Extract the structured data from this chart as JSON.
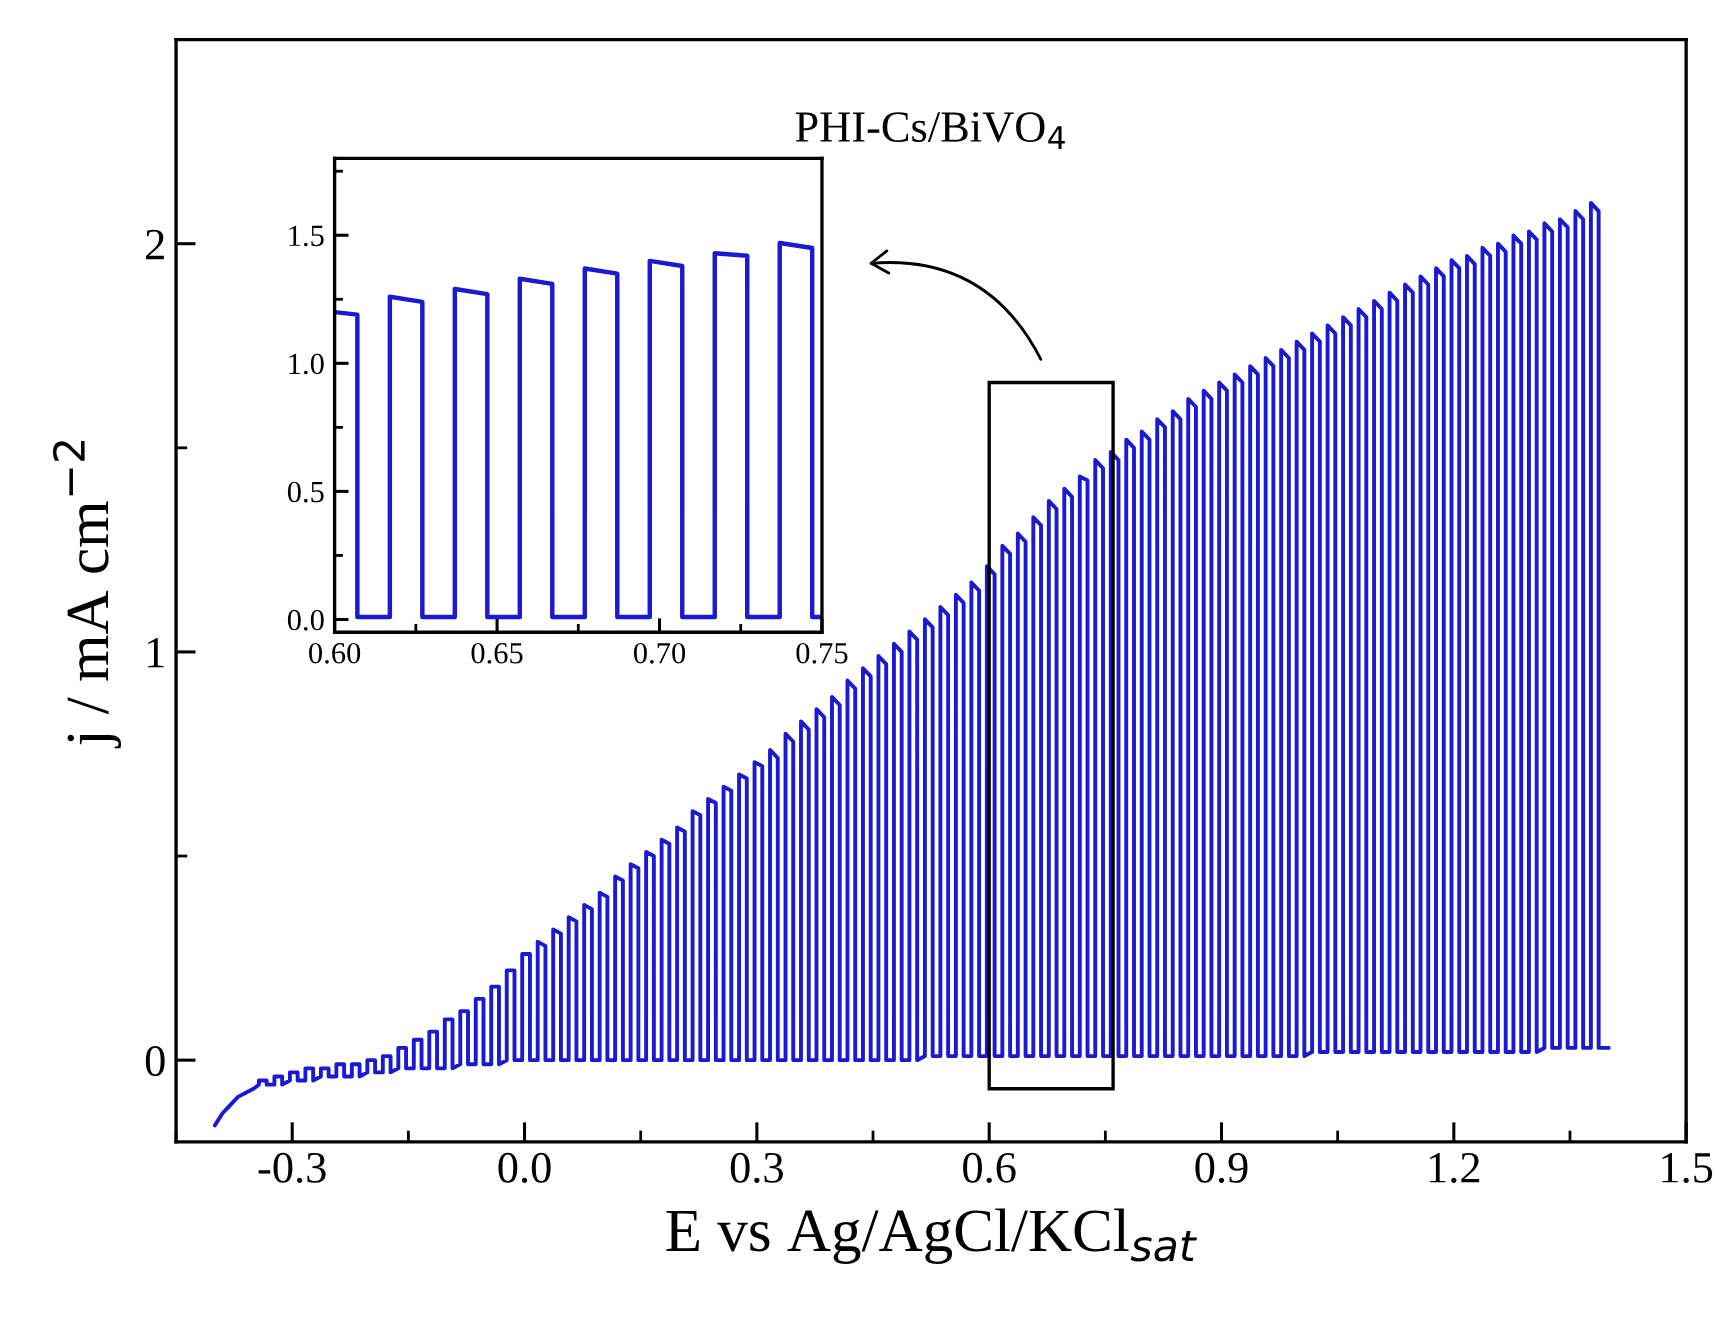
{
  "chart_data": [
    {
      "type": "line",
      "title": "PHI-Cs/BiVO$_{4}$",
      "xlabel": "E vs Ag/AgCl/KCl$_{sat}$",
      "ylabel": "j / mA cm$^{−2}$",
      "xlim": [
        -0.45,
        1.5
      ],
      "ylim": [
        -0.2,
        2.5
      ],
      "xticks": [
        -0.3,
        {
          "value": 0.0,
          "label": "0.0"
        },
        0.3,
        0.6,
        0.9,
        1.2,
        1.5
      ],
      "yticks": [
        0,
        1,
        2
      ],
      "series": [
        {
          "color": "#1a1ad2",
          "x": [
            -0.4,
            -0.39,
            -0.38,
            -0.37,
            -0.36,
            -0.35,
            -0.343,
            -0.343,
            -0.333,
            -0.333,
            -0.323,
            -0.323,
            -0.313,
            -0.313,
            -0.303,
            -0.303,
            -0.293,
            -0.293,
            -0.283,
            -0.283,
            -0.273,
            -0.273,
            -0.263,
            -0.263,
            -0.253,
            -0.253,
            -0.243,
            -0.243,
            -0.233,
            -0.233,
            -0.223,
            -0.223,
            -0.213,
            -0.213,
            -0.203,
            -0.203,
            -0.193,
            -0.193,
            -0.183,
            -0.183,
            -0.173,
            -0.173,
            -0.163,
            -0.163,
            -0.153,
            -0.153,
            -0.143,
            -0.143,
            -0.133,
            -0.133,
            -0.123,
            -0.123,
            -0.113,
            -0.113,
            -0.103,
            -0.103,
            -0.093,
            -0.093,
            -0.083,
            -0.083,
            -0.073,
            -0.073,
            -0.063,
            -0.063,
            -0.053,
            -0.053,
            -0.043,
            -0.043,
            -0.033,
            -0.033,
            -0.023,
            -0.023,
            -0.013,
            -0.013,
            -0.003,
            -0.003,
            0.007,
            0.007,
            0.017,
            0.017,
            0.027,
            0.027,
            0.037,
            0.037,
            0.047,
            0.047,
            0.057,
            0.057,
            0.067,
            0.067,
            0.077,
            0.077,
            0.087,
            0.087,
            0.097,
            0.097,
            0.107,
            0.107,
            0.117,
            0.117,
            0.127,
            0.127,
            0.137,
            0.137,
            0.147,
            0.147,
            0.157,
            0.157,
            0.167,
            0.167,
            0.177,
            0.177,
            0.187,
            0.187,
            0.197,
            0.197,
            0.207,
            0.207,
            0.217,
            0.217,
            0.227,
            0.227,
            0.237,
            0.237,
            0.247,
            0.247,
            0.257,
            0.257,
            0.267,
            0.267,
            0.277,
            0.277,
            0.287,
            0.287,
            0.297,
            0.297,
            0.307,
            0.307,
            0.317,
            0.317,
            0.327,
            0.327,
            0.337,
            0.337,
            0.347,
            0.347,
            0.357,
            0.357,
            0.367,
            0.367,
            0.377,
            0.377,
            0.387,
            0.387,
            0.397,
            0.397,
            0.407,
            0.407,
            0.417,
            0.417,
            0.427,
            0.427,
            0.437,
            0.437,
            0.447,
            0.447,
            0.457,
            0.457,
            0.467,
            0.467,
            0.477,
            0.477,
            0.487,
            0.487,
            0.497,
            0.497,
            0.507,
            0.507,
            0.517,
            0.517,
            0.527,
            0.527,
            0.537,
            0.537,
            0.547,
            0.547,
            0.557,
            0.557,
            0.567,
            0.567,
            0.577,
            0.577,
            0.587,
            0.587,
            0.597,
            0.597,
            0.607,
            0.607,
            0.617,
            0.617,
            0.627,
            0.627,
            0.637,
            0.637,
            0.647,
            0.647,
            0.657,
            0.657,
            0.667,
            0.667,
            0.677,
            0.677,
            0.687,
            0.687,
            0.697,
            0.697,
            0.707,
            0.707,
            0.717,
            0.717,
            0.727,
            0.727,
            0.737,
            0.737,
            0.747,
            0.747,
            0.757,
            0.757,
            0.767,
            0.767,
            0.777,
            0.777,
            0.787,
            0.787,
            0.797,
            0.797,
            0.807,
            0.807,
            0.817,
            0.817,
            0.827,
            0.827,
            0.837,
            0.837,
            0.847,
            0.847,
            0.857,
            0.857,
            0.867,
            0.867,
            0.877,
            0.877,
            0.887,
            0.887,
            0.897,
            0.897,
            0.907,
            0.907,
            0.917,
            0.917,
            0.927,
            0.927,
            0.937,
            0.937,
            0.947,
            0.947,
            0.957,
            0.957,
            0.967,
            0.967,
            0.977,
            0.977,
            0.987,
            0.987,
            0.997,
            0.997,
            1.007,
            1.007,
            1.017,
            1.017,
            1.027,
            1.027,
            1.037,
            1.037,
            1.047,
            1.047,
            1.057,
            1.057,
            1.067,
            1.067,
            1.077,
            1.077,
            1.087,
            1.087,
            1.097,
            1.097,
            1.107,
            1.107,
            1.117,
            1.117,
            1.127,
            1.127,
            1.137,
            1.137,
            1.147,
            1.147,
            1.157,
            1.157,
            1.167,
            1.167,
            1.177,
            1.177,
            1.187,
            1.187,
            1.197,
            1.197,
            1.207,
            1.207,
            1.217,
            1.217,
            1.227,
            1.227,
            1.237,
            1.237,
            1.247,
            1.247,
            1.257,
            1.257,
            1.267,
            1.267,
            1.277,
            1.277,
            1.287,
            1.287,
            1.297,
            1.297,
            1.307,
            1.307,
            1.317,
            1.317,
            1.327,
            1.327,
            1.337,
            1.337,
            1.347,
            1.347,
            1.357,
            1.357,
            1.367,
            1.367,
            1.377,
            1.377,
            1.387,
            1.387,
            1.4
          ],
          "values": [
            -0.16,
            -0.13,
            -0.11,
            -0.09,
            -0.08,
            -0.07,
            -0.06,
            -0.05,
            -0.05,
            -0.06,
            -0.06,
            -0.04,
            -0.04,
            -0.06,
            -0.05,
            -0.03,
            -0.03,
            -0.05,
            -0.05,
            -0.02,
            -0.02,
            -0.05,
            -0.04,
            -0.02,
            -0.02,
            -0.04,
            -0.04,
            -0.01,
            -0.01,
            -0.04,
            -0.04,
            -0.01,
            -0.01,
            -0.04,
            -0.03,
            0,
            0,
            -0.03,
            -0.03,
            0.01,
            0.01,
            -0.03,
            -0.02,
            0.03,
            0.03,
            -0.02,
            -0.02,
            0.05,
            0.05,
            -0.02,
            -0.02,
            0.07,
            0.07,
            -0.02,
            -0.02,
            0.1,
            0.1,
            -0.02,
            -0.01,
            0.12,
            0.12,
            -0.01,
            -0.01,
            0.15,
            0.15,
            -0.01,
            -0.01,
            0.18,
            0.18,
            -0.01,
            0,
            0.22,
            0.22,
            0,
            0,
            0.26,
            0.26,
            0,
            0,
            0.29,
            0.28,
            0,
            0,
            0.32,
            0.31,
            0,
            0,
            0.35,
            0.34,
            0,
            0,
            0.38,
            0.37,
            0,
            0,
            0.41,
            0.4,
            0,
            0,
            0.45,
            0.44,
            0,
            0,
            0.48,
            0.47,
            0,
            0,
            0.51,
            0.5,
            0,
            0,
            0.54,
            0.53,
            0,
            0,
            0.57,
            0.56,
            0,
            0,
            0.61,
            0.6,
            0,
            0,
            0.64,
            0.63,
            0,
            0,
            0.67,
            0.66,
            0,
            0,
            0.7,
            0.69,
            0,
            0,
            0.73,
            0.72,
            0,
            0,
            0.76,
            0.74,
            0,
            0,
            0.8,
            0.78,
            0,
            0,
            0.83,
            0.81,
            0,
            0,
            0.86,
            0.84,
            0,
            0,
            0.89,
            0.87,
            0,
            0,
            0.93,
            0.91,
            0,
            0,
            0.96,
            0.94,
            0,
            0,
            0.99,
            0.97,
            0,
            0,
            1.02,
            1.0,
            0,
            0,
            1.05,
            1.03,
            0,
            0.01,
            1.08,
            1.06,
            0.01,
            0.01,
            1.11,
            1.09,
            0.01,
            0.01,
            1.14,
            1.12,
            0.01,
            0.01,
            1.17,
            1.15,
            0.01,
            0.01,
            1.21,
            1.19,
            0.01,
            0.01,
            1.26,
            1.24,
            0.01,
            0.01,
            1.29,
            1.27,
            0.01,
            0.01,
            1.33,
            1.31,
            0.01,
            0.01,
            1.37,
            1.35,
            0.01,
            0.01,
            1.4,
            1.38,
            0.01,
            0.01,
            1.43,
            1.42,
            0.01,
            0.01,
            1.47,
            1.45,
            0.01,
            0.01,
            1.49,
            1.47,
            0.01,
            0.01,
            1.52,
            1.5,
            0.01,
            0.01,
            1.54,
            1.52,
            0.01,
            0.01,
            1.57,
            1.55,
            0.01,
            0.01,
            1.59,
            1.57,
            0.01,
            0.01,
            1.62,
            1.6,
            0.01,
            0.01,
            1.64,
            1.62,
            0.01,
            0.01,
            1.66,
            1.64,
            0.01,
            0.01,
            1.68,
            1.66,
            0.01,
            0.01,
            1.7,
            1.68,
            0.01,
            0.01,
            1.72,
            1.7,
            0.01,
            0.01,
            1.74,
            1.72,
            0.01,
            0.01,
            1.76,
            1.74,
            0.01,
            0.02,
            1.78,
            1.76,
            0.02,
            0.02,
            1.8,
            1.78,
            0.02,
            0.02,
            1.82,
            1.8,
            0.02,
            0.02,
            1.84,
            1.82,
            0.02,
            0.02,
            1.86,
            1.84,
            0.02,
            0.02,
            1.88,
            1.86,
            0.02,
            0.02,
            1.9,
            1.88,
            0.02,
            0.02,
            1.92,
            1.9,
            0.02,
            0.02,
            1.94,
            1.92,
            0.02,
            0.02,
            1.96,
            1.94,
            0.02,
            0.02,
            1.97,
            1.95,
            0.02,
            0.02,
            1.99,
            1.97,
            0.02,
            0.02,
            2.0,
            1.98,
            0.02,
            0.02,
            2.02,
            2.0,
            0.02,
            0.02,
            2.03,
            2.01,
            0.02,
            0.03,
            2.05,
            2.03,
            0.03,
            0.03,
            2.06,
            2.04,
            0.03,
            0.03,
            2.08,
            2.06,
            0.03,
            0.03,
            2.1,
            2.08,
            0.03,
            0.03
          ]
        }
      ]
    },
    {
      "type": "line",
      "xlim": [
        0.6,
        0.75
      ],
      "ylim": [
        -0.05,
        1.8
      ],
      "xticks": [
        {
          "value": 0.6,
          "label": "0.60"
        },
        0.65,
        {
          "value": 0.7,
          "label": "0.70"
        },
        0.75
      ],
      "yticks": [
        {
          "value": 0.0,
          "label": "0.0"
        },
        0.5,
        {
          "value": 1.0,
          "label": "1.0"
        },
        1.5
      ],
      "series": [
        {
          "color": "#1a1ad2",
          "x": [
            0.6,
            0.607,
            0.607,
            0.617,
            0.617,
            0.627,
            0.627,
            0.637,
            0.637,
            0.647,
            0.647,
            0.657,
            0.657,
            0.667,
            0.667,
            0.677,
            0.677,
            0.687,
            0.687,
            0.697,
            0.697,
            0.707,
            0.707,
            0.717,
            0.717,
            0.727,
            0.727,
            0.737,
            0.737,
            0.747,
            0.747,
            0.75
          ],
          "values": [
            1.2,
            1.19,
            0.01,
            0.01,
            1.26,
            1.24,
            0.01,
            0.01,
            1.29,
            1.27,
            0.01,
            0.01,
            1.33,
            1.31,
            0.01,
            0.01,
            1.37,
            1.35,
            0.01,
            0.01,
            1.4,
            1.38,
            0.01,
            0.01,
            1.43,
            1.42,
            0.01,
            0.01,
            1.47,
            1.45,
            0.01,
            0.01
          ]
        }
      ]
    }
  ]
}
